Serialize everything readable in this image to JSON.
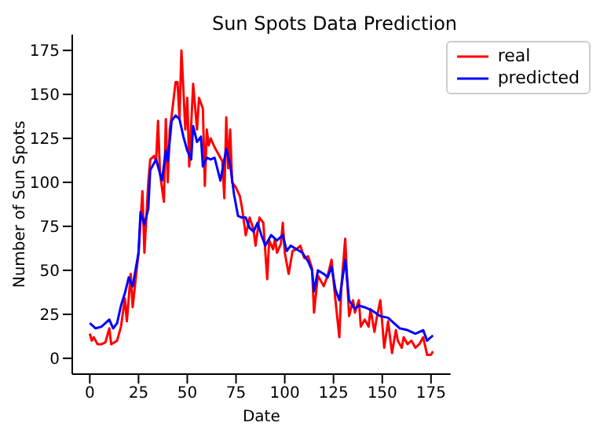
{
  "chart_data": {
    "type": "line",
    "title": "Sun Spots Data Prediction",
    "xlabel": "Date",
    "ylabel": "Number of Sun Spots",
    "xlim": [
      -9,
      185
    ],
    "ylim": [
      -9,
      184
    ],
    "xticks": [
      0,
      25,
      50,
      75,
      100,
      125,
      150,
      175
    ],
    "yticks": [
      0,
      25,
      50,
      75,
      100,
      125,
      150,
      175
    ],
    "legend": "top right",
    "line_style": "solid",
    "marker": "none",
    "series": [
      {
        "name": "real",
        "color": "#ff0000",
        "x": [
          0,
          1,
          2,
          4,
          6,
          8,
          10,
          11,
          14,
          16,
          18,
          19,
          21,
          22,
          24,
          25,
          27,
          28,
          30,
          31,
          33,
          34,
          35,
          36,
          38,
          39,
          40,
          41,
          42,
          44,
          45,
          46,
          47,
          49,
          50,
          51,
          53,
          55,
          56,
          58,
          59,
          60,
          61,
          62,
          64,
          66,
          68,
          69,
          70,
          71,
          72,
          73,
          75,
          77,
          78,
          80,
          82,
          84,
          85,
          87,
          89,
          91,
          92,
          94,
          95,
          96,
          98,
          99,
          100,
          102,
          104,
          106,
          108,
          110,
          112,
          114,
          115,
          117,
          118,
          120,
          122,
          124,
          126,
          128,
          129,
          131,
          132,
          133,
          135,
          136,
          138,
          139,
          141,
          143,
          144,
          146,
          147,
          149,
          150,
          151,
          153,
          155,
          157,
          158,
          160,
          161,
          163,
          165,
          167,
          169,
          171,
          173,
          175,
          176
        ],
        "values": [
          14,
          10,
          12,
          8,
          8,
          9,
          17,
          8,
          10,
          18,
          34,
          21,
          48,
          29,
          50,
          60,
          95,
          60,
          100,
          113,
          115,
          112,
          135,
          105,
          89,
          136,
          100,
          130,
          138,
          157,
          157,
          136,
          175,
          130,
          148,
          109,
          156,
          130,
          148,
          142,
          98,
          130,
          121,
          125,
          120,
          116,
          112,
          91,
          137,
          108,
          130,
          100,
          97,
          92,
          86,
          70,
          80,
          73,
          64,
          80,
          77,
          45,
          67,
          62,
          68,
          60,
          65,
          77,
          60,
          48,
          61,
          62,
          64,
          57,
          58,
          51,
          26,
          47,
          45,
          41,
          47,
          56,
          33,
          12,
          40,
          68,
          45,
          24,
          33,
          26,
          33,
          18,
          22,
          18,
          28,
          15,
          22,
          33,
          20,
          6,
          21,
          3,
          16,
          10,
          6,
          12,
          8,
          10,
          6,
          8,
          12,
          2,
          2,
          4
        ]
      },
      {
        "name": "predicted",
        "color": "#0000ff",
        "x": [
          0,
          3,
          6,
          8,
          10,
          12,
          14,
          16,
          18,
          20,
          22,
          25,
          26,
          28,
          30,
          31,
          34,
          37,
          39,
          40,
          42,
          44,
          46,
          48,
          50,
          52,
          53,
          55,
          57,
          58,
          60,
          62,
          64,
          67,
          70,
          72,
          74,
          76,
          78,
          80,
          82,
          84,
          86,
          88,
          90,
          93,
          96,
          99,
          101,
          103,
          106,
          109,
          112,
          114,
          115,
          117,
          120,
          122,
          124,
          126,
          128,
          131,
          133,
          136,
          138,
          141,
          145,
          149,
          153,
          156,
          159,
          163,
          167,
          171,
          173,
          176
        ],
        "values": [
          20,
          17,
          18,
          20,
          22,
          17,
          20,
          30,
          37,
          46,
          41,
          60,
          83,
          76,
          85,
          107,
          113,
          101,
          118,
          112,
          135,
          138,
          136,
          126,
          118,
          113,
          132,
          123,
          126,
          109,
          114,
          113,
          114,
          101,
          119,
          110,
          93,
          81,
          80,
          80,
          74,
          72,
          77,
          70,
          64,
          70,
          67,
          70,
          61,
          64,
          62,
          60,
          55,
          50,
          38,
          50,
          48,
          46,
          52,
          39,
          33,
          56,
          33,
          28,
          30,
          29,
          27,
          24,
          23,
          20,
          17,
          16,
          14,
          16,
          10,
          13
        ]
      }
    ]
  }
}
